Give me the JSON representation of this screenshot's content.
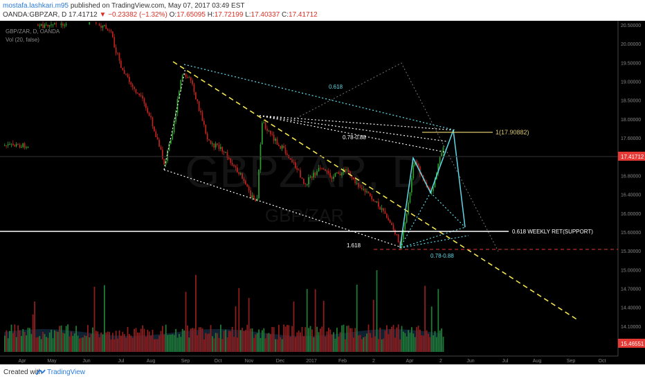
{
  "header": {
    "author": "mostafa.lashkari.m95",
    "published_text": "published on TradingView.com, May 07, 2017 03:49 EST",
    "symbol": "OANDA:GBPZAR, D",
    "last": "17.41712",
    "change": "−0.23382 (−1.32%)",
    "open_label": "O:",
    "open": "17.65095",
    "high_label": "H:",
    "high": "17.72199",
    "low_label": "L:",
    "low": "17.40337",
    "close_label": "C:",
    "close": "17.41712"
  },
  "legend": {
    "pair": "GBP/ZAR, D, OANDA",
    "vol": "Vol (20, false)"
  },
  "watermark": {
    "symbol": "GBPZAR, D",
    "sub": "GBP/ZAR"
  },
  "annotations": {
    "fib_0618_top": "0.618",
    "fib_078_088_top": "0.78-0.88",
    "fib_1618": "1.618",
    "fib_078_088_bottom": "0.78-0.88",
    "target_label": "1(17.90882)",
    "support_label": "0.618  WEEKLY RET(SUPPORT)"
  },
  "price_tags": {
    "current": "17.41712",
    "volume": "15.46551"
  },
  "footer": {
    "created_with": "Created with",
    "brand": "TradingView"
  },
  "colors": {
    "bg": "#000000",
    "up": "#2ca02c",
    "down": "#c0231e",
    "yellow": "#f5e653",
    "cyan": "#5fd8e6",
    "current_tag": "#e53935"
  },
  "chart_data": {
    "type": "candlestick",
    "title": "GBP/ZAR, D, OANDA",
    "ylim": [
      13.6,
      20.7
    ],
    "y_ticks": [
      "20.50000",
      "20.00000",
      "19.50000",
      "19.00000",
      "18.50000",
      "18.00000",
      "17.60000",
      "17.20000",
      "16.80000",
      "16.40000",
      "16.00000",
      "15.60000",
      "15.30000",
      "15.00000",
      "14.70000",
      "14.40000",
      "14.10000",
      "13.85000"
    ],
    "x_ticks": [
      "Apr",
      "May",
      "Jun",
      "Jul",
      "Aug",
      "Sep",
      "Oct",
      "Nov",
      "Dec",
      "2017",
      "Feb",
      "2",
      "Apr",
      "2",
      "Jun",
      "Jul",
      "Aug",
      "Sep",
      "Oct"
    ],
    "series": [
      {
        "name": "GBP/ZAR",
        "points": [
          {
            "x": "2016-05-20",
            "close": 20.5
          },
          {
            "x": "2016-06-25",
            "close": 19.4
          },
          {
            "x": "2016-07-10",
            "close": 18.9
          },
          {
            "x": "2016-08-15",
            "close": 17.3
          },
          {
            "x": "2016-09-05",
            "close": 19.4
          },
          {
            "x": "2016-10-05",
            "close": 17.9
          },
          {
            "x": "2016-10-25",
            "close": 16.4
          },
          {
            "x": "2016-11-10",
            "close": 18.2
          },
          {
            "x": "2016-12-20",
            "close": 16.9
          },
          {
            "x": "2017-01-20",
            "close": 17.1
          },
          {
            "x": "2017-03-25",
            "close": 15.5
          },
          {
            "x": "2017-04-08",
            "close": 17.1
          },
          {
            "x": "2017-04-20",
            "close": 16.7
          },
          {
            "x": "2017-05-05",
            "close": 17.6
          }
        ]
      }
    ],
    "levels": [
      {
        "label": "1(17.90882)",
        "value": 17.90882
      },
      {
        "label": "0.618 WEEKLY RET(SUPPORT)",
        "value": 15.9
      }
    ]
  }
}
